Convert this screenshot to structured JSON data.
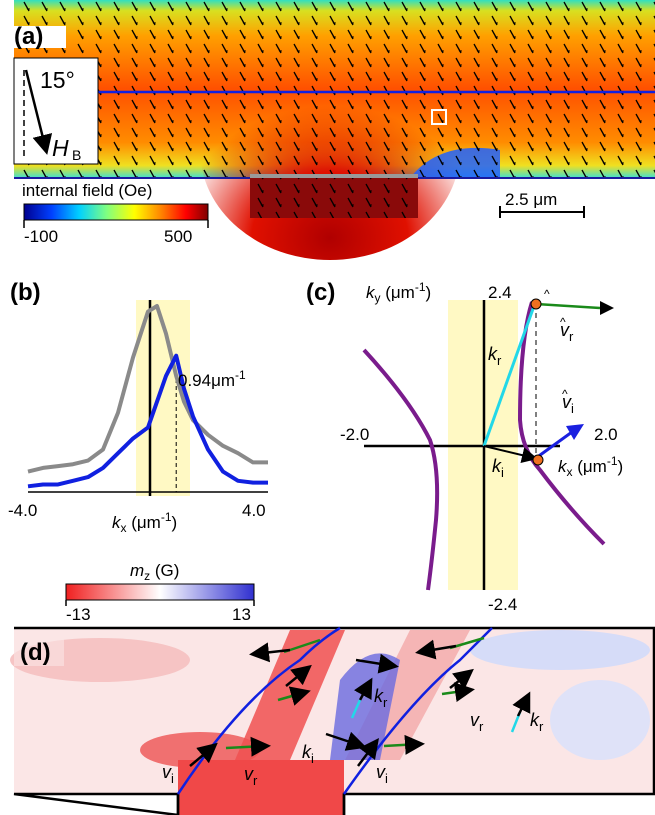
{
  "panels": {
    "a": {
      "label": "(a)",
      "angle_text": "15°",
      "field_symbol": "H",
      "field_sub": "B",
      "colorbar": {
        "title": "internal field (Oe)",
        "min": "-100",
        "max": "500"
      },
      "scalebar": "2.5 μm"
    },
    "b": {
      "label": "(b)",
      "peak_annotation": "0.94μm",
      "peak_annotation_sup": "-1",
      "x_min_tick": "-4.0",
      "x_max_tick": "4.0",
      "x_axis_italic": "k",
      "x_axis_sub": "x",
      "x_axis_unit": " (μm",
      "x_axis_unit_sup": "-1",
      "x_axis_close": ")"
    },
    "c": {
      "label": "(c)",
      "ky_italic": "k",
      "ky_sub": "y",
      "ky_unit": " (μm",
      "ky_unit_sup": "-1",
      "ky_close": ")",
      "y_top_tick": "2.4",
      "y_bottom_tick": "-2.4",
      "x_left_tick": "-2.0",
      "x_right_tick": "2.0",
      "kr_italic": "k",
      "kr_sub": "r",
      "ki_italic": "k",
      "ki_sub": "i",
      "vr_italic": "v",
      "vr_sub": "r",
      "vi_italic": "v",
      "vi_sub": "i",
      "kx_italic": "k",
      "kx_sub": "x",
      "kx_unit": " (μm",
      "kx_unit_sup": "-1",
      "kx_close": ")"
    },
    "mz_colorbar": {
      "title_italic": "m",
      "title_sub": "z",
      "title_unit": " (G)",
      "min": "-13",
      "max": "13"
    },
    "d": {
      "label": "(d)",
      "vi_italic": "v",
      "vi_sub": "i",
      "vr_italic": "v",
      "vr_sub": "r",
      "kr_italic": "k",
      "kr_sub": "r",
      "ki_italic": "k",
      "ki_sub": "i"
    }
  },
  "colors": {
    "purple": "#7a1c8c",
    "blue_line": "#1020e0",
    "cyan": "#22d8e8",
    "green": "#1a8a1a",
    "yellow_band": "#fff9c4",
    "gray_curve": "#8a8a8a",
    "orange_dot": "#f07020"
  },
  "chart_data": {
    "type": "line",
    "xlim": [
      -4.0,
      4.0
    ],
    "series": [
      {
        "x": [
          -4.0,
          -3.5,
          -3.0,
          -2.5,
          -2.0,
          -1.5,
          -1.0,
          -0.5,
          0.0,
          0.3,
          0.6,
          0.94,
          1.2,
          1.5,
          2.0,
          2.5,
          3.0,
          3.5,
          4.0
        ],
        "y": [
          0.1,
          0.12,
          0.13,
          0.14,
          0.16,
          0.22,
          0.42,
          0.72,
          0.97,
          1.0,
          0.85,
          0.62,
          0.48,
          0.38,
          0.3,
          0.24,
          0.2,
          0.15,
          0.15
        ]
      },
      {
        "x": [
          -4.0,
          -3.5,
          -3.0,
          -2.5,
          -2.0,
          -1.5,
          -1.0,
          -0.5,
          0.0,
          0.3,
          0.6,
          0.94,
          1.2,
          1.5,
          2.0,
          2.5,
          3.0,
          3.5,
          4.0
        ],
        "y": [
          0.02,
          0.03,
          0.03,
          0.05,
          0.07,
          0.12,
          0.2,
          0.28,
          0.34,
          0.48,
          0.62,
          0.73,
          0.55,
          0.4,
          0.22,
          0.1,
          0.05,
          0.04,
          0.04
        ]
      }
    ],
    "annotation": {
      "x": 0.94,
      "text": "0.94μm-1"
    }
  }
}
